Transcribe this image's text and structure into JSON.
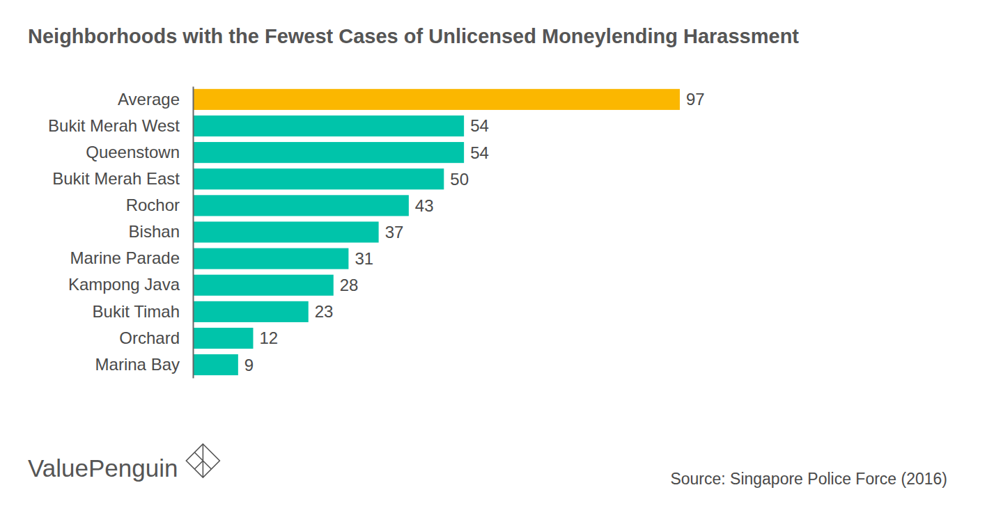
{
  "chart_data": {
    "type": "bar",
    "orientation": "horizontal",
    "title": "Neighborhoods with the Fewest Cases of Unlicensed Moneylending Harassment",
    "categories": [
      "Average",
      "Bukit Merah West",
      "Queenstown",
      "Bukit Merah East",
      "Rochor",
      "Bishan",
      "Marine Parade",
      "Kampong Java",
      "Bukit Timah",
      "Orchard",
      "Marina Bay"
    ],
    "values": [
      97,
      54,
      54,
      50,
      43,
      37,
      31,
      28,
      23,
      12,
      9
    ],
    "colors": [
      "#fbb700",
      "#00c4aa",
      "#00c4aa",
      "#00c4aa",
      "#00c4aa",
      "#00c4aa",
      "#00c4aa",
      "#00c4aa",
      "#00c4aa",
      "#00c4aa",
      "#00c4aa"
    ],
    "xlim": [
      0,
      97
    ],
    "data_labels": true,
    "tick_labels": "y",
    "grid": false,
    "brand": "ValuePenguin",
    "source": "Source: Singapore Police Force (2016)"
  }
}
